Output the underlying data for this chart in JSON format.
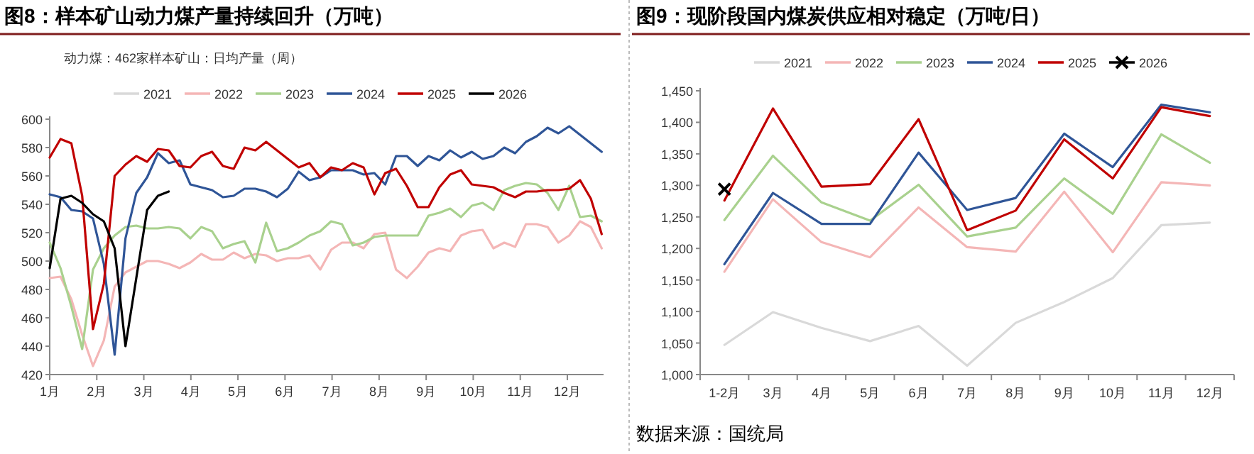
{
  "chart_data": [
    {
      "type": "line",
      "title": "图8：样本矿山动力煤产量持续回升（万吨）",
      "subtitle": "动力煤：462家样本矿山：日均产量（周）",
      "legend": "top",
      "grid": false,
      "marker": "none",
      "x": [
        1.0,
        1.23,
        1.46,
        1.69,
        1.92,
        2.15,
        2.38,
        2.61,
        2.84,
        3.07,
        3.3,
        3.53,
        3.76,
        3.99,
        4.22,
        4.45,
        4.68,
        4.91,
        5.14,
        5.37,
        5.6,
        5.83,
        6.06,
        6.29,
        6.52,
        6.75,
        6.98,
        7.21,
        7.44,
        7.67,
        7.9,
        8.13,
        8.36,
        8.59,
        8.82,
        9.05,
        9.28,
        9.51,
        9.74,
        9.97,
        10.2,
        10.43,
        10.66,
        10.89,
        11.12,
        11.35,
        11.58,
        11.81,
        12.04,
        12.27,
        12.5,
        12.73
      ],
      "xlim": [
        1,
        12.77
      ],
      "xticks": [
        {
          "value": 1,
          "label": "1月"
        },
        {
          "value": 2,
          "label": "2月"
        },
        {
          "value": 3,
          "label": "3月"
        },
        {
          "value": 4,
          "label": "4月"
        },
        {
          "value": 5,
          "label": "5月"
        },
        {
          "value": 6,
          "label": "6月"
        },
        {
          "value": 7,
          "label": "7月"
        },
        {
          "value": 8,
          "label": "8月"
        },
        {
          "value": 9,
          "label": "9月"
        },
        {
          "value": 10,
          "label": "10月"
        },
        {
          "value": 11,
          "label": "11月"
        },
        {
          "value": 12,
          "label": "12月"
        }
      ],
      "ylim": [
        420,
        600
      ],
      "yticks": [
        420,
        440,
        460,
        480,
        500,
        520,
        540,
        560,
        580,
        600
      ],
      "series": [
        {
          "name": "2021",
          "color": "#d9d9d9",
          "values": [
            null,
            null,
            null,
            null,
            null,
            null,
            null,
            null,
            null,
            null,
            null,
            null,
            null,
            null,
            null,
            null,
            null,
            null,
            null,
            null,
            null,
            null,
            null,
            null,
            null,
            null,
            null,
            null,
            null,
            null,
            null,
            null,
            null,
            null,
            null,
            null,
            null,
            null,
            null,
            null,
            null,
            null,
            null,
            null,
            null,
            null,
            null,
            null,
            null,
            null,
            null,
            null
          ]
        },
        {
          "name": "2022",
          "color": "#f4b6b6",
          "values": [
            488,
            489,
            473,
            448,
            426,
            444,
            482,
            492,
            496,
            500,
            500,
            498,
            495,
            499,
            505,
            501,
            501,
            506,
            502,
            505,
            504,
            500,
            502,
            502,
            504,
            494,
            508,
            513,
            513,
            509,
            519,
            520,
            494,
            488,
            496,
            506,
            509,
            507,
            518,
            521,
            522,
            509,
            513,
            510,
            526,
            526,
            524,
            513,
            518,
            528,
            524,
            509
          ]
        },
        {
          "name": "2023",
          "color": "#a9d18e",
          "values": [
            513,
            495,
            468,
            438,
            494,
            509,
            518,
            524,
            525,
            523,
            523,
            524,
            523,
            516,
            524,
            521,
            509,
            512,
            514,
            499,
            527,
            507,
            509,
            513,
            518,
            521,
            528,
            526,
            511,
            513,
            517,
            518,
            518,
            518,
            518,
            532,
            534,
            537,
            531,
            539,
            541,
            536,
            550,
            553,
            555,
            554,
            548,
            536,
            553,
            531,
            532,
            528
          ]
        },
        {
          "name": "2024",
          "color": "#2f5597",
          "values": [
            547,
            545,
            536,
            535,
            530,
            498,
            434,
            516,
            548,
            559,
            576,
            569,
            571,
            554,
            552,
            550,
            545,
            546,
            551,
            551,
            549,
            545,
            551,
            563,
            557,
            559,
            564,
            564,
            564,
            561,
            562,
            554,
            574,
            574,
            567,
            574,
            571,
            578,
            573,
            577,
            572,
            574,
            580,
            576,
            584,
            588,
            594,
            590,
            595,
            589,
            583,
            577
          ]
        },
        {
          "name": "2025",
          "color": "#c00000",
          "values": [
            573,
            586,
            583,
            546,
            452,
            484,
            560,
            568,
            574,
            570,
            579,
            578,
            567,
            566,
            574,
            577,
            567,
            565,
            580,
            578,
            584,
            578,
            572,
            566,
            569,
            559,
            566,
            564,
            569,
            566,
            547,
            562,
            565,
            553,
            538,
            538,
            552,
            561,
            564,
            554,
            553,
            552,
            548,
            545,
            549,
            549,
            550,
            550,
            551,
            557,
            544,
            519
          ]
        },
        {
          "name": "2026",
          "color": "#000000",
          "values": [
            495,
            544,
            546,
            541,
            533,
            528,
            509,
            440,
            488,
            536,
            546,
            549,
            null,
            null,
            null,
            null,
            null,
            null,
            null,
            null,
            null,
            null,
            null,
            null,
            null,
            null,
            null,
            null,
            null,
            null,
            null,
            null,
            null,
            null,
            null,
            null,
            null,
            null,
            null,
            null,
            null,
            null,
            null,
            null,
            null,
            null,
            null,
            null,
            null,
            null,
            null,
            null
          ]
        }
      ]
    },
    {
      "type": "line",
      "title": "图9：现阶段国内煤炭供应相对稳定（万吨/日）",
      "legend": "top",
      "grid": false,
      "marker": "none",
      "categories": [
        "1-2月",
        "3月",
        "4月",
        "5月",
        "6月",
        "7月",
        "8月",
        "9月",
        "10月",
        "11月",
        "12月"
      ],
      "ylim": [
        1000,
        1450
      ],
      "yticks": [
        {
          "value": 1000,
          "label": "1,000"
        },
        {
          "value": 1050,
          "label": "1,050"
        },
        {
          "value": 1100,
          "label": "1,100"
        },
        {
          "value": 1150,
          "label": "1,150"
        },
        {
          "value": 1200,
          "label": "1,200"
        },
        {
          "value": 1250,
          "label": "1,250"
        },
        {
          "value": 1300,
          "label": "1,300"
        },
        {
          "value": 1350,
          "label": "1,350"
        },
        {
          "value": 1400,
          "label": "1,400"
        },
        {
          "value": 1450,
          "label": "1,450"
        }
      ],
      "annotations": [
        "数据来源：国统局"
      ],
      "series": [
        {
          "name": "2021",
          "color": "#d9d9d9",
          "values": [
            1047,
            1099,
            1074,
            1053,
            1077,
            1014,
            1082,
            1115,
            1153,
            1237,
            1241
          ]
        },
        {
          "name": "2022",
          "color": "#f4b6b6",
          "values": [
            1163,
            1278,
            1210,
            1186,
            1265,
            1202,
            1195,
            1290,
            1194,
            1305,
            1300
          ]
        },
        {
          "name": "2023",
          "color": "#a9d18e",
          "values": [
            1245,
            1347,
            1273,
            1244,
            1301,
            1219,
            1233,
            1311,
            1255,
            1381,
            1336
          ]
        },
        {
          "name": "2024",
          "color": "#2f5597",
          "values": [
            1175,
            1288,
            1239,
            1239,
            1352,
            1261,
            1280,
            1382,
            1329,
            1428,
            1416
          ]
        },
        {
          "name": "2025",
          "color": "#c00000",
          "values": [
            1276,
            1422,
            1298,
            1302,
            1405,
            1229,
            1260,
            1373,
            1311,
            1424,
            1410
          ]
        },
        {
          "name": "2026",
          "color": "#000000",
          "marker": "cross",
          "values": [
            1294,
            null,
            null,
            null,
            null,
            null,
            null,
            null,
            null,
            null,
            null
          ]
        }
      ]
    }
  ]
}
